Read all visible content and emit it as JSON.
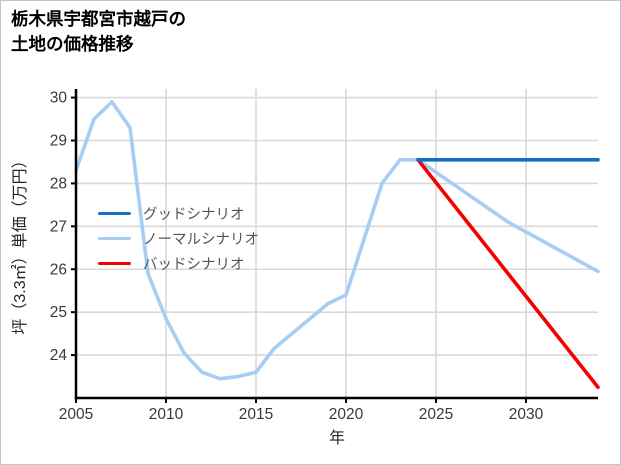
{
  "window": {
    "background": "#ffffff",
    "border_color": "#c4c4c4"
  },
  "header": {
    "line1": "栃木県宇都宮市越戸の",
    "line2": "土地の価格推移"
  },
  "chart_data": {
    "type": "line",
    "title": "栃木県宇都宮市越戸の土地の価格推移",
    "xlabel": "年",
    "ylabel": "坪（3.3㎡）単価（万円）",
    "xlim": [
      2005,
      2034
    ],
    "ylim": [
      23.0,
      30.2
    ],
    "xticks": [
      2005,
      2010,
      2015,
      2020,
      2025,
      2030
    ],
    "yticks": [
      24,
      25,
      26,
      27,
      28,
      29,
      30
    ],
    "grid": true,
    "grid_color": "#d9d9d9",
    "axis_color": "#000000",
    "tick_label_color": "#3a3a3a",
    "axis_label_color": "#262626",
    "legend": {
      "position": "center-left",
      "text_color": "#555555",
      "entries": [
        "グッドシナリオ",
        "ノーマルシナリオ",
        "バッドシナリオ"
      ]
    },
    "series": [
      {
        "key": "good",
        "name": "グッドシナリオ",
        "color": "#0e72c6",
        "x": [
          2024,
          2034
        ],
        "y": [
          28.55,
          28.55
        ]
      },
      {
        "key": "normal",
        "name": "ノーマルシナリオ",
        "color": "#a6cef5",
        "x": [
          2005,
          2006,
          2007,
          2008,
          2009,
          2010,
          2011,
          2012,
          2013,
          2014,
          2015,
          2016,
          2017,
          2018,
          2019,
          2020,
          2021,
          2022,
          2023,
          2024,
          2029,
          2034
        ],
        "y": [
          28.3,
          29.5,
          29.9,
          29.3,
          25.9,
          24.85,
          24.05,
          23.6,
          23.45,
          23.5,
          23.6,
          24.15,
          24.5,
          24.85,
          25.2,
          25.4,
          26.7,
          28.0,
          28.55,
          28.55,
          27.1,
          25.95
        ]
      },
      {
        "key": "bad",
        "name": "バッドシナリオ",
        "color": "#f50000",
        "x": [
          2024,
          2034
        ],
        "y": [
          28.55,
          23.25
        ]
      }
    ]
  }
}
